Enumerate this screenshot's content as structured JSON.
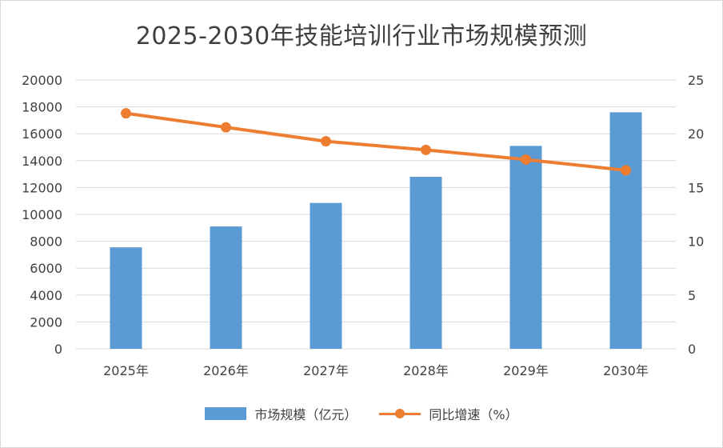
{
  "chart_data": {
    "type": "bar+line",
    "title": "2025-2030年技能培训行业市场规模预测",
    "categories": [
      "2025年",
      "2026年",
      "2027年",
      "2028年",
      "2029年",
      "2030年"
    ],
    "series": [
      {
        "name": "市场规模（亿元）",
        "type": "bar",
        "axis": "left",
        "color": "#5B9BD5",
        "values": [
          7550,
          9100,
          10850,
          12800,
          15100,
          17600
        ]
      },
      {
        "name": "同比增速（%）",
        "type": "line",
        "axis": "right",
        "color": "#ED7D31",
        "values": [
          21.9,
          20.6,
          19.3,
          18.5,
          17.6,
          16.6
        ]
      }
    ],
    "y_left": {
      "ylim": [
        0,
        20000
      ],
      "ticks": [
        "0",
        "2000",
        "4000",
        "6000",
        "8000",
        "10000",
        "12000",
        "14000",
        "16000",
        "18000",
        "20000"
      ]
    },
    "y_right": {
      "ylim": [
        0,
        25
      ],
      "ticks": [
        "0",
        "5",
        "10",
        "15",
        "20",
        "25"
      ]
    },
    "grid": true,
    "legend_position": "bottom"
  }
}
